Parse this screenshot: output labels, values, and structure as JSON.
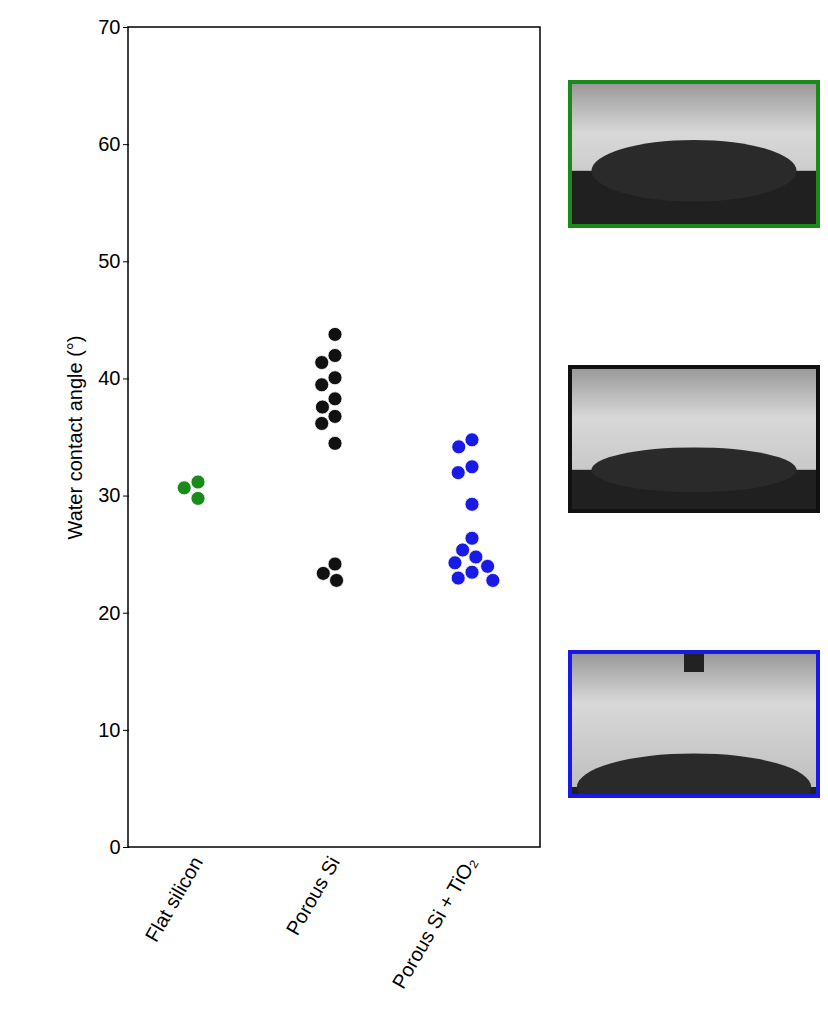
{
  "chart_data": {
    "type": "scatter",
    "y_label": "Water contact angle (°)",
    "categories": [
      "Flat silicon",
      "Porous Si",
      "Porous Si + TiO₂"
    ],
    "colors": [
      "#1a8a1a",
      "#111111",
      "#1a1ae6"
    ],
    "values": [
      [
        31.2,
        30.7,
        29.8
      ],
      [
        43.8,
        42.0,
        41.4,
        40.1,
        39.5,
        38.3,
        37.6,
        36.8,
        36.2,
        34.5,
        24.2,
        23.4,
        22.8
      ],
      [
        34.8,
        34.2,
        32.5,
        32.0,
        29.3,
        26.4,
        25.4,
        24.8,
        24.3,
        24.0,
        23.5,
        23.0,
        22.8
      ]
    ],
    "ylim": [
      0,
      70
    ],
    "yticks": [
      0,
      10,
      20,
      30,
      40,
      50,
      60,
      70
    ],
    "grid": false
  }
}
